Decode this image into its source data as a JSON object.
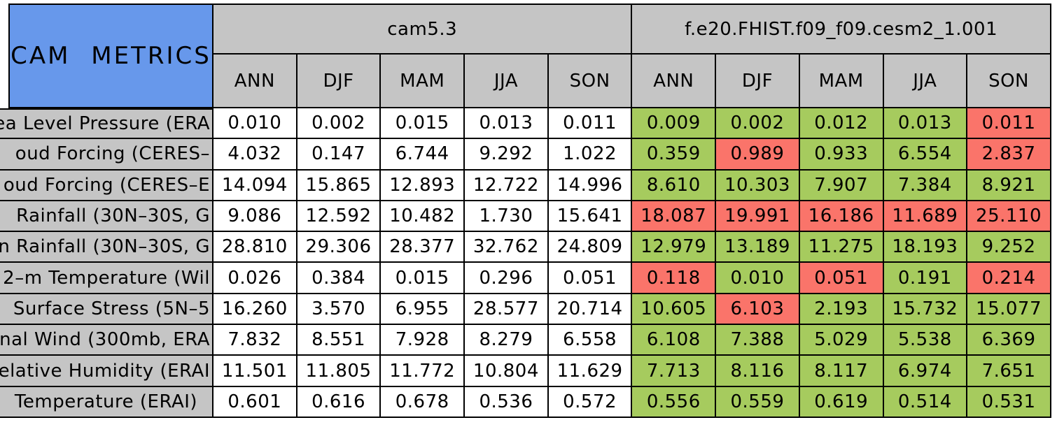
{
  "table": {
    "title": "CAM METRICS",
    "groups": [
      {
        "name": "cam5.3",
        "seasons": [
          "ANN",
          "DJF",
          "MAM",
          "JJA",
          "SON"
        ]
      },
      {
        "name": "f.e20.FHIST.f09_f09.cesm2_1.001",
        "seasons": [
          "ANN",
          "DJF",
          "MAM",
          "JJA",
          "SON"
        ]
      }
    ],
    "rows": [
      {
        "label": "ea Level Pressure (ERA",
        "cam5_3": [
          "0.010",
          "0.002",
          "0.015",
          "0.013",
          "0.011"
        ],
        "cesm2": [
          {
            "value": "0.009",
            "status": "better"
          },
          {
            "value": "0.002",
            "status": "better"
          },
          {
            "value": "0.012",
            "status": "better"
          },
          {
            "value": "0.013",
            "status": "better"
          },
          {
            "value": "0.011",
            "status": "worse"
          }
        ]
      },
      {
        "label": "oud Forcing (CERES–",
        "cam5_3": [
          "4.032",
          "0.147",
          "6.744",
          "9.292",
          "1.022"
        ],
        "cesm2": [
          {
            "value": "0.359",
            "status": "better"
          },
          {
            "value": "0.989",
            "status": "worse"
          },
          {
            "value": "0.933",
            "status": "better"
          },
          {
            "value": "6.554",
            "status": "better"
          },
          {
            "value": "2.837",
            "status": "worse"
          }
        ]
      },
      {
        "label": "oud Forcing (CERES–E",
        "cam5_3": [
          "14.094",
          "15.865",
          "12.893",
          "12.722",
          "14.996"
        ],
        "cesm2": [
          {
            "value": "8.610",
            "status": "better"
          },
          {
            "value": "10.303",
            "status": "better"
          },
          {
            "value": "7.907",
            "status": "better"
          },
          {
            "value": "7.384",
            "status": "better"
          },
          {
            "value": "8.921",
            "status": "better"
          }
        ]
      },
      {
        "label": "Rainfall (30N–30S, G",
        "cam5_3": [
          "9.086",
          "12.592",
          "10.482",
          "1.730",
          "15.641"
        ],
        "cesm2": [
          {
            "value": "18.087",
            "status": "worse"
          },
          {
            "value": "19.991",
            "status": "worse"
          },
          {
            "value": "16.186",
            "status": "worse"
          },
          {
            "value": "11.689",
            "status": "worse"
          },
          {
            "value": "25.110",
            "status": "worse"
          }
        ]
      },
      {
        "label": "n Rainfall (30N–30S, G",
        "cam5_3": [
          "28.810",
          "29.306",
          "28.377",
          "32.762",
          "24.809"
        ],
        "cesm2": [
          {
            "value": "12.979",
            "status": "better"
          },
          {
            "value": "13.189",
            "status": "better"
          },
          {
            "value": "11.275",
            "status": "better"
          },
          {
            "value": "18.193",
            "status": "better"
          },
          {
            "value": "9.252",
            "status": "better"
          }
        ]
      },
      {
        "label": "2–m Temperature (Wil",
        "cam5_3": [
          "0.026",
          "0.384",
          "0.015",
          "0.296",
          "0.051"
        ],
        "cesm2": [
          {
            "value": "0.118",
            "status": "worse"
          },
          {
            "value": "0.010",
            "status": "better"
          },
          {
            "value": "0.051",
            "status": "worse"
          },
          {
            "value": "0.191",
            "status": "better"
          },
          {
            "value": "0.214",
            "status": "worse"
          }
        ]
      },
      {
        "label": "Surface Stress (5N–5",
        "cam5_3": [
          "16.260",
          "3.570",
          "6.955",
          "28.577",
          "20.714"
        ],
        "cesm2": [
          {
            "value": "10.605",
            "status": "better"
          },
          {
            "value": "6.103",
            "status": "worse"
          },
          {
            "value": "2.193",
            "status": "better"
          },
          {
            "value": "15.732",
            "status": "better"
          },
          {
            "value": "15.077",
            "status": "better"
          }
        ]
      },
      {
        "label": "onal Wind (300mb, ERA",
        "cam5_3": [
          "7.832",
          "8.551",
          "7.928",
          "8.279",
          "6.558"
        ],
        "cesm2": [
          {
            "value": "6.108",
            "status": "better"
          },
          {
            "value": "7.388",
            "status": "better"
          },
          {
            "value": "5.029",
            "status": "better"
          },
          {
            "value": "5.538",
            "status": "better"
          },
          {
            "value": "6.369",
            "status": "better"
          }
        ]
      },
      {
        "label": "Relative Humidity (ERAI",
        "cam5_3": [
          "11.501",
          "11.805",
          "11.772",
          "10.804",
          "11.629"
        ],
        "cesm2": [
          {
            "value": "7.713",
            "status": "better"
          },
          {
            "value": "8.116",
            "status": "better"
          },
          {
            "value": "8.117",
            "status": "better"
          },
          {
            "value": "6.974",
            "status": "better"
          },
          {
            "value": "7.651",
            "status": "better"
          }
        ]
      },
      {
        "label": "Temperature (ERAI)",
        "cam5_3": [
          "0.601",
          "0.616",
          "0.678",
          "0.536",
          "0.572"
        ],
        "cesm2": [
          {
            "value": "0.556",
            "status": "better"
          },
          {
            "value": "0.559",
            "status": "better"
          },
          {
            "value": "0.619",
            "status": "better"
          },
          {
            "value": "0.514",
            "status": "better"
          },
          {
            "value": "0.531",
            "status": "better"
          }
        ]
      }
    ]
  },
  "colors": {
    "title_bg": "#6798EB",
    "header_bg": "#C5C5C5",
    "better_bg": "#A6CB5E",
    "worse_bg": "#FA746A",
    "cell_bg": "#FFFFFF",
    "border": "#000000"
  },
  "chart_data": {
    "type": "table",
    "title": "CAM METRICS",
    "column_groups": [
      "cam5.3",
      "f.e20.FHIST.f09_f09.cesm2_1.001"
    ],
    "seasons": [
      "ANN",
      "DJF",
      "MAM",
      "JJA",
      "SON"
    ],
    "cell_color_legend": {
      "green": "#A6CB5E",
      "red": "#FA746A"
    },
    "metrics": [
      {
        "label": "ea Level Pressure (ERA",
        "cam5_3_values": [
          0.01,
          0.002,
          0.015,
          0.013,
          0.011
        ],
        "cesm2_1_001_values": [
          0.009,
          0.002,
          0.012,
          0.013,
          0.011
        ],
        "cesm2_1_001_colors": [
          "green",
          "green",
          "green",
          "green",
          "red"
        ]
      },
      {
        "label": "oud Forcing (CERES–",
        "cam5_3_values": [
          4.032,
          0.147,
          6.744,
          9.292,
          1.022
        ],
        "cesm2_1_001_values": [
          0.359,
          0.989,
          0.933,
          6.554,
          2.837
        ],
        "cesm2_1_001_colors": [
          "green",
          "red",
          "green",
          "green",
          "red"
        ]
      },
      {
        "label": "oud Forcing (CERES–E",
        "cam5_3_values": [
          14.094,
          15.865,
          12.893,
          12.722,
          14.996
        ],
        "cesm2_1_001_values": [
          8.61,
          10.303,
          7.907,
          7.384,
          8.921
        ],
        "cesm2_1_001_colors": [
          "green",
          "green",
          "green",
          "green",
          "green"
        ]
      },
      {
        "label": "Rainfall (30N–30S, G",
        "cam5_3_values": [
          9.086,
          12.592,
          10.482,
          1.73,
          15.641
        ],
        "cesm2_1_001_values": [
          18.087,
          19.991,
          16.186,
          11.689,
          25.11
        ],
        "cesm2_1_001_colors": [
          "red",
          "red",
          "red",
          "red",
          "red"
        ]
      },
      {
        "label": "n Rainfall (30N–30S, G",
        "cam5_3_values": [
          28.81,
          29.306,
          28.377,
          32.762,
          24.809
        ],
        "cesm2_1_001_values": [
          12.979,
          13.189,
          11.275,
          18.193,
          9.252
        ],
        "cesm2_1_001_colors": [
          "green",
          "green",
          "green",
          "green",
          "green"
        ]
      },
      {
        "label": "2–m Temperature (Wil",
        "cam5_3_values": [
          0.026,
          0.384,
          0.015,
          0.296,
          0.051
        ],
        "cesm2_1_001_values": [
          0.118,
          0.01,
          0.051,
          0.191,
          0.214
        ],
        "cesm2_1_001_colors": [
          "red",
          "green",
          "red",
          "green",
          "red"
        ]
      },
      {
        "label": "Surface Stress (5N–5",
        "cam5_3_values": [
          16.26,
          3.57,
          6.955,
          28.577,
          20.714
        ],
        "cesm2_1_001_values": [
          10.605,
          6.103,
          2.193,
          15.732,
          15.077
        ],
        "cesm2_1_001_colors": [
          "green",
          "red",
          "green",
          "green",
          "green"
        ]
      },
      {
        "label": "onal Wind (300mb, ERA",
        "cam5_3_values": [
          7.832,
          8.551,
          7.928,
          8.279,
          6.558
        ],
        "cesm2_1_001_values": [
          6.108,
          7.388,
          5.029,
          5.538,
          6.369
        ],
        "cesm2_1_001_colors": [
          "green",
          "green",
          "green",
          "green",
          "green"
        ]
      },
      {
        "label": "Relative Humidity (ERAI",
        "cam5_3_values": [
          11.501,
          11.805,
          11.772,
          10.804,
          11.629
        ],
        "cesm2_1_001_values": [
          7.713,
          8.116,
          8.117,
          6.974,
          7.651
        ],
        "cesm2_1_001_colors": [
          "green",
          "green",
          "green",
          "green",
          "green"
        ]
      },
      {
        "label": "Temperature (ERAI)",
        "cam5_3_values": [
          0.601,
          0.616,
          0.678,
          0.536,
          0.572
        ],
        "cesm2_1_001_values": [
          0.556,
          0.559,
          0.619,
          0.514,
          0.531
        ],
        "cesm2_1_001_colors": [
          "green",
          "green",
          "green",
          "green",
          "green"
        ]
      }
    ]
  }
}
